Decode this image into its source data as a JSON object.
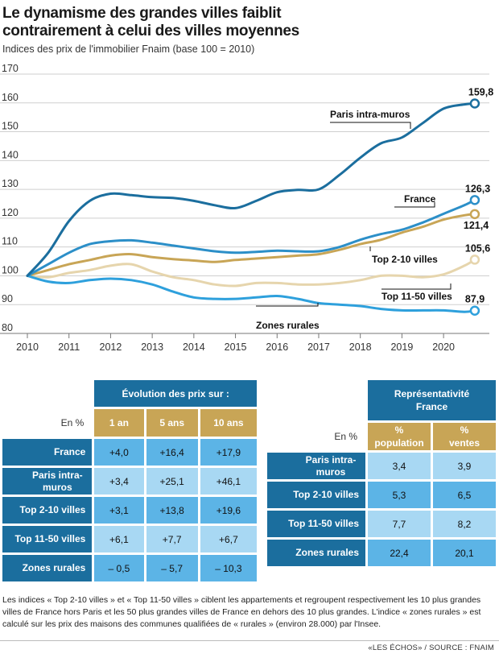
{
  "title_line1": "Le dynamisme des grandes villes faiblit",
  "title_line2": "contrairement à celui des villes moyennes",
  "subtitle": "Indices des prix de l'immobilier Fnaim (base 100 = 2010)",
  "chart_data": {
    "type": "line",
    "title": "Le dynamisme des grandes villes faiblit contrairement à celui des villes moyennes",
    "subtitle": "Indices des prix de l'immobilier Fnaim (base 100 = 2010)",
    "xlim": [
      2010,
      2021.1
    ],
    "ylim": [
      80,
      170
    ],
    "yticks": [
      80,
      90,
      100,
      110,
      120,
      130,
      140,
      150,
      160,
      170
    ],
    "xticks": [
      2010,
      2011,
      2012,
      2013,
      2014,
      2015,
      2016,
      2017,
      2018,
      2019,
      2020
    ],
    "grid": true,
    "x": [
      2010,
      2010.5,
      2011,
      2011.5,
      2012,
      2012.5,
      2013,
      2013.5,
      2014,
      2014.5,
      2015,
      2015.5,
      2016,
      2016.5,
      2017,
      2017.5,
      2018,
      2018.5,
      2019,
      2019.5,
      2020,
      2020.5,
      2020.75
    ],
    "series": [
      {
        "name": "Paris intra-muros",
        "color": "#1b6e9e",
        "final_label": "159,8",
        "values": [
          100,
          108,
          119,
          126,
          128.5,
          128,
          127.3,
          127,
          126,
          124.5,
          123.5,
          126,
          129,
          129.8,
          130,
          135,
          141,
          146,
          148,
          153,
          158,
          159.5,
          159.8
        ]
      },
      {
        "name": "France",
        "color": "#2c8fc8",
        "final_label": "126,3",
        "values": [
          100,
          104,
          108,
          111,
          112,
          112.3,
          111.5,
          110.5,
          109.5,
          108.5,
          108,
          108.3,
          108.7,
          108.5,
          108.5,
          110,
          112.5,
          114.5,
          116,
          118.5,
          121.5,
          124.5,
          126.3
        ]
      },
      {
        "name": "Top 2-10 villes",
        "color": "#c8a556",
        "final_label": "121,4",
        "values": [
          100,
          102,
          104,
          105.5,
          107,
          107.5,
          106.5,
          105.8,
          105.3,
          104.8,
          105.5,
          106,
          106.5,
          107,
          107.5,
          109,
          111,
          112.5,
          115,
          117,
          119.5,
          121,
          121.4
        ]
      },
      {
        "name": "Top 11-50 villes",
        "color": "#e6d5ad",
        "final_label": "105,6",
        "values": [
          100,
          99.5,
          101,
          102,
          103.5,
          104,
          101.5,
          99.5,
          98.5,
          97,
          96.5,
          97.5,
          97.5,
          97,
          97,
          97.5,
          98.5,
          100,
          100,
          99.5,
          100.5,
          103.5,
          105.6
        ]
      },
      {
        "name": "Zones rurales",
        "color": "#2ea0dc",
        "final_label": "87,9",
        "values": [
          100,
          98,
          97.5,
          98.5,
          99,
          98.5,
          97,
          94.5,
          92.5,
          92,
          92,
          92.5,
          93,
          92,
          90.5,
          90,
          89.5,
          88.5,
          88,
          88,
          88,
          87.5,
          87.9
        ]
      }
    ]
  },
  "table1": {
    "unit": "En %",
    "header": "Évolution des prix sur :",
    "columns": [
      "1 an",
      "5 ans",
      "10 ans"
    ],
    "rows": [
      {
        "label": "France",
        "values": [
          "+4,0",
          "+16,4",
          "+17,9"
        ]
      },
      {
        "label": "Paris intra-muros",
        "values": [
          "+3,4",
          "+25,1",
          "+46,1"
        ]
      },
      {
        "label": "Top 2-10 villes",
        "values": [
          "+3,1",
          "+13,8",
          "+19,6"
        ]
      },
      {
        "label": "Top 11-50 villes",
        "values": [
          "+6,1",
          "+7,7",
          "+6,7"
        ]
      },
      {
        "label": "Zones rurales",
        "values": [
          "– 0,5",
          "– 5,7",
          "– 10,3"
        ]
      }
    ]
  },
  "table2": {
    "unit": "En %",
    "header": "Représentativité France",
    "columns": [
      "% population",
      "% ventes"
    ],
    "rows": [
      {
        "label": "Paris intra-muros",
        "values": [
          "3,4",
          "3,9"
        ]
      },
      {
        "label": "Top 2-10 villes",
        "values": [
          "5,3",
          "6,5"
        ]
      },
      {
        "label": "Top 11-50 villes",
        "values": [
          "7,7",
          "8,2"
        ]
      },
      {
        "label": "Zones rurales",
        "values": [
          "22,4",
          "20,1"
        ]
      }
    ]
  },
  "note": "Les indices « Top 2-10 villes » et « Top 11-50 villes » ciblent les appartements et regroupent respectivement les 10 plus grandes villes de France hors Paris et les 50 plus grandes villes de France en dehors des 10 plus grandes. L'indice « zones rurales » est calculé sur les prix des maisons des communes qualifiées de « rurales » (environ 28.000) par l'Insee.",
  "source": "«LES ÉCHOS» / SOURCE : FNAIM"
}
